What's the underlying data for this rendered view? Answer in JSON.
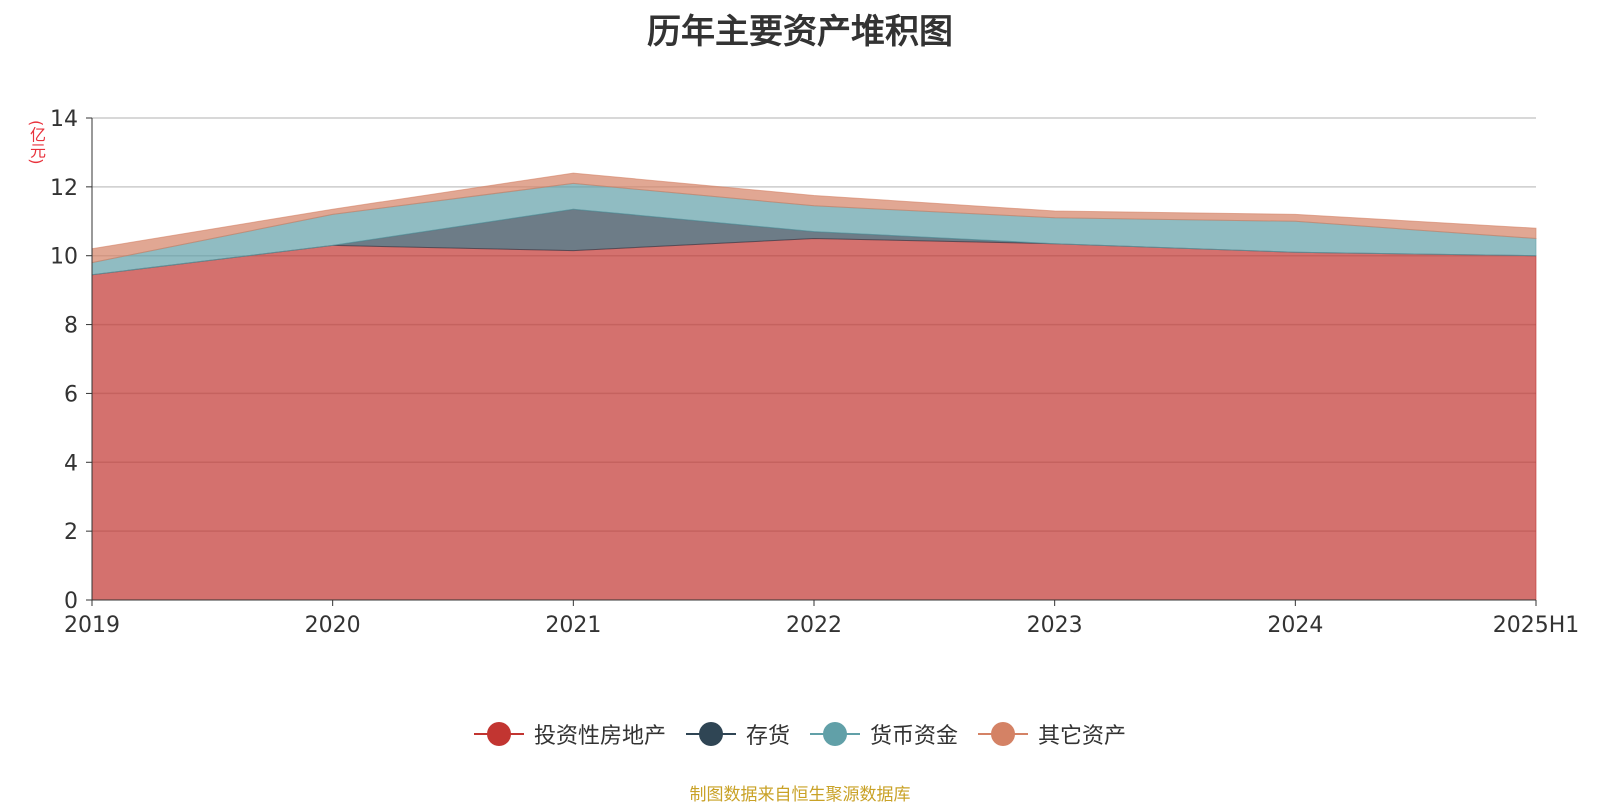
{
  "chart_data": {
    "type": "area",
    "stacked": true,
    "title": "历年主要资产堆积图",
    "ylabel": "(亿元)",
    "xlabel": "",
    "categories": [
      "2019",
      "2020",
      "2021",
      "2022",
      "2023",
      "2024",
      "2025H1"
    ],
    "ylim": [
      0,
      14
    ],
    "yticks": [
      0,
      2,
      4,
      6,
      8,
      10,
      12,
      14
    ],
    "grid": true,
    "legend_position": "bottom",
    "series": [
      {
        "name": "投资性房地产",
        "color": "#c23531",
        "values": [
          9.45,
          10.3,
          10.15,
          10.5,
          10.35,
          10.1,
          10.0
        ]
      },
      {
        "name": "存货",
        "color": "#2f4554",
        "values": [
          0.0,
          0.0,
          1.2,
          0.2,
          0.0,
          0.0,
          0.0
        ]
      },
      {
        "name": "货币资金",
        "color": "#61a0a8",
        "values": [
          0.35,
          0.9,
          0.75,
          0.75,
          0.75,
          0.9,
          0.5
        ]
      },
      {
        "name": "其它资产",
        "color": "#d48265",
        "values": [
          0.4,
          0.15,
          0.3,
          0.3,
          0.2,
          0.2,
          0.3
        ]
      }
    ]
  },
  "source_note": "制图数据来自恒生聚源数据库"
}
